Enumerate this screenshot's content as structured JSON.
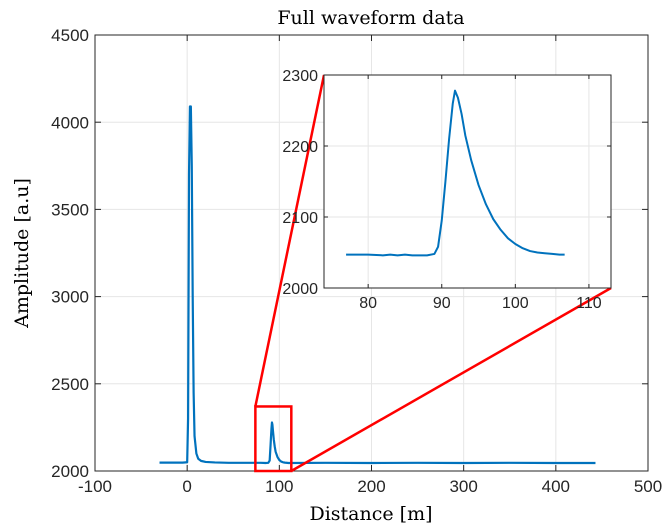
{
  "chart_data": {
    "type": "line",
    "title": "Full waveform data",
    "xlabel": "Distance [m]",
    "ylabel": "Amplitude [a.u]",
    "xlim": [
      -100,
      500
    ],
    "ylim": [
      2000,
      4500
    ],
    "x_ticks": [
      "-100",
      "0",
      "100",
      "200",
      "300",
      "400",
      "500"
    ],
    "y_ticks": [
      "2000",
      "2500",
      "3000",
      "3500",
      "4000",
      "4500"
    ],
    "grid": true,
    "colors": {
      "line": "#0072BD",
      "zoom": "#ff0000",
      "axis": "#262626",
      "grid": "#e6e6e6"
    },
    "series": [
      {
        "x": [
          -30,
          -5,
          0,
          1,
          2,
          3,
          4,
          5,
          6,
          7,
          8,
          10,
          12,
          15,
          20,
          30,
          45,
          60,
          76,
          80,
          85,
          88,
          89.5,
          90.5,
          91,
          91.5,
          92,
          92.5,
          93,
          94,
          95,
          96,
          98,
          100,
          102,
          104,
          106,
          110,
          150,
          200,
          250,
          300,
          350,
          400,
          443
        ],
        "y": [
          2048,
          2048,
          2050,
          2300,
          3700,
          4090,
          4090,
          3750,
          3000,
          2450,
          2200,
          2100,
          2070,
          2058,
          2052,
          2049,
          2047,
          2047,
          2047,
          2047,
          2046,
          2047,
          2060,
          2150,
          2200,
          2245,
          2278,
          2265,
          2235,
          2180,
          2140,
          2110,
          2080,
          2063,
          2054,
          2050,
          2048,
          2046,
          2047,
          2046,
          2047,
          2046,
          2047,
          2046,
          2046
        ]
      }
    ],
    "zoom_region": {
      "xlim": [
        74,
        113
      ],
      "ylim": [
        2000,
        2370
      ]
    },
    "inset": {
      "xlim": [
        74,
        113
      ],
      "ylim": [
        2000,
        2300
      ],
      "x_ticks": [
        "80",
        "90",
        "100",
        "110"
      ],
      "y_ticks": [
        "2000",
        "2100",
        "2200",
        "2300"
      ],
      "series": [
        {
          "x": [
            77,
            80,
            82,
            83,
            84,
            85,
            86,
            87,
            88,
            89,
            89.5,
            90,
            90.5,
            91,
            91.5,
            91.8,
            92.2,
            92.7,
            93.2,
            94,
            95,
            96,
            97,
            98,
            99,
            100,
            101,
            102,
            103,
            104,
            105,
            106,
            106.7
          ],
          "y": [
            2047,
            2047,
            2046,
            2047,
            2046,
            2047,
            2046,
            2046,
            2046,
            2048,
            2058,
            2095,
            2150,
            2210,
            2260,
            2278,
            2268,
            2245,
            2215,
            2180,
            2145,
            2118,
            2097,
            2082,
            2070,
            2062,
            2056,
            2052,
            2050,
            2049,
            2048,
            2047,
            2047
          ]
        }
      ]
    }
  }
}
